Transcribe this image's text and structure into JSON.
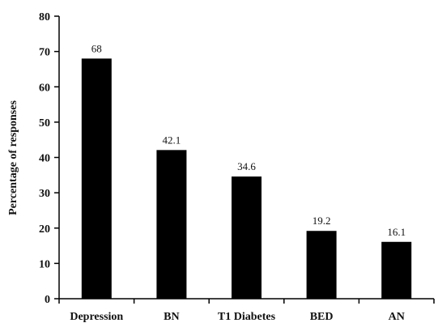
{
  "chart_data": {
    "type": "bar",
    "title": "",
    "xlabel": "",
    "ylabel": "Percentage of responses",
    "categories": [
      "Depression",
      "BN",
      "T1 Diabetes",
      "BED",
      "AN"
    ],
    "values": [
      68,
      42.1,
      34.6,
      19.2,
      16.1
    ],
    "data_labels": [
      "68",
      "42.1",
      "34.6",
      "19.2",
      "16.1"
    ],
    "ylim": [
      0,
      80
    ],
    "yticks": [
      0,
      10,
      20,
      30,
      40,
      50,
      60,
      70,
      80
    ],
    "grid": false,
    "legend": "none",
    "bar_color": "#000000",
    "axis_color": "#000000"
  }
}
